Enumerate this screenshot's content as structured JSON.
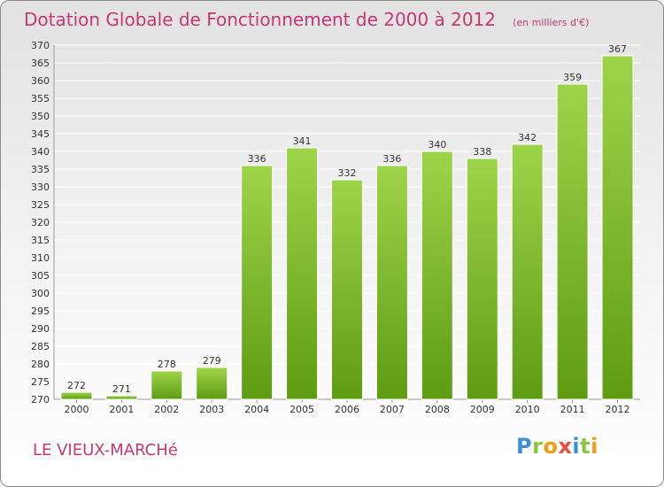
{
  "title": "Dotation Globale de Fonctionnement de 2000 à 2012",
  "unit_note": "(en milliers d'€)",
  "commune": "LE VIEUX-MARCHé",
  "logo": {
    "letters": [
      "P",
      "r",
      "o",
      "x",
      "i",
      "t",
      "i"
    ],
    "colors": [
      "#3a8fd6",
      "#8cc63f",
      "#f39c12",
      "#e74c3c",
      "#3a8fd6",
      "#8cc63f",
      "#f39c12"
    ]
  },
  "colors": {
    "bar_light": "#9ed44a",
    "bar_dark": "#5e9c12",
    "grid": "#ffffff",
    "title": "#c8376f"
  },
  "chart_data": {
    "type": "bar",
    "categories": [
      "2000",
      "2001",
      "2002",
      "2003",
      "2004",
      "2005",
      "2006",
      "2007",
      "2008",
      "2009",
      "2010",
      "2011",
      "2012"
    ],
    "values": [
      272,
      271,
      278,
      279,
      336,
      341,
      332,
      336,
      340,
      338,
      342,
      359,
      367
    ],
    "ylim": [
      270,
      370
    ],
    "yticks": [
      270,
      275,
      280,
      285,
      290,
      295,
      300,
      305,
      310,
      315,
      320,
      325,
      330,
      335,
      340,
      345,
      350,
      355,
      360,
      365,
      370
    ],
    "grid": true,
    "data_labels": true
  }
}
